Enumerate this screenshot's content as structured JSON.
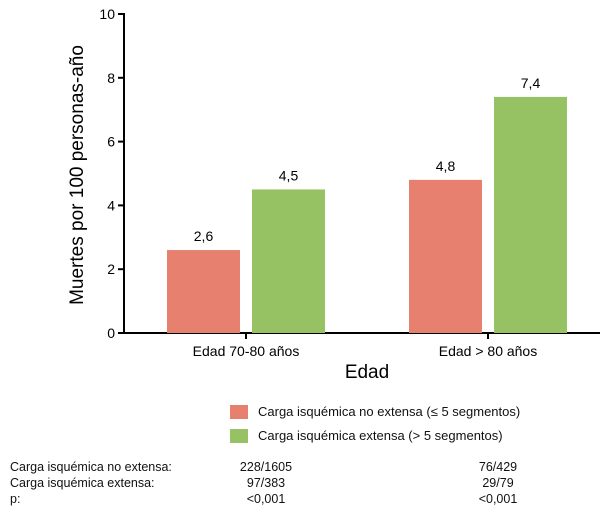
{
  "chart_data": {
    "type": "bar",
    "categories": [
      "Edad 70-80 años",
      "Edad > 80 años"
    ],
    "series": [
      {
        "name": "Carga isquémica no extensa (≤ 5 segmentos)",
        "values": [
          2.6,
          4.8
        ],
        "labels": [
          "2,6",
          "4,8"
        ],
        "color": "#e8806f"
      },
      {
        "name": "Carga isquémica extensa (> 5 segmentos)",
        "values": [
          4.5,
          7.4
        ],
        "labels": [
          "4,5",
          "7,4"
        ],
        "color": "#96c263"
      }
    ],
    "title": "",
    "xlabel": "Edad",
    "ylabel": "Muertes por 100 personas-año",
    "ylim": [
      0,
      10
    ],
    "yticks": [
      "0",
      "2",
      "4",
      "6",
      "8",
      "10"
    ],
    "grid": false,
    "legend_position": "bottom"
  },
  "stats": {
    "rows": [
      {
        "label": "Carga isquémica no extensa:",
        "values": [
          "228/1605",
          "76/429"
        ]
      },
      {
        "label": "Carga isquémica extensa:",
        "values": [
          "97/383",
          "29/79"
        ]
      },
      {
        "label": "p:",
        "values": [
          "<0,001",
          "<0,001"
        ]
      }
    ]
  }
}
